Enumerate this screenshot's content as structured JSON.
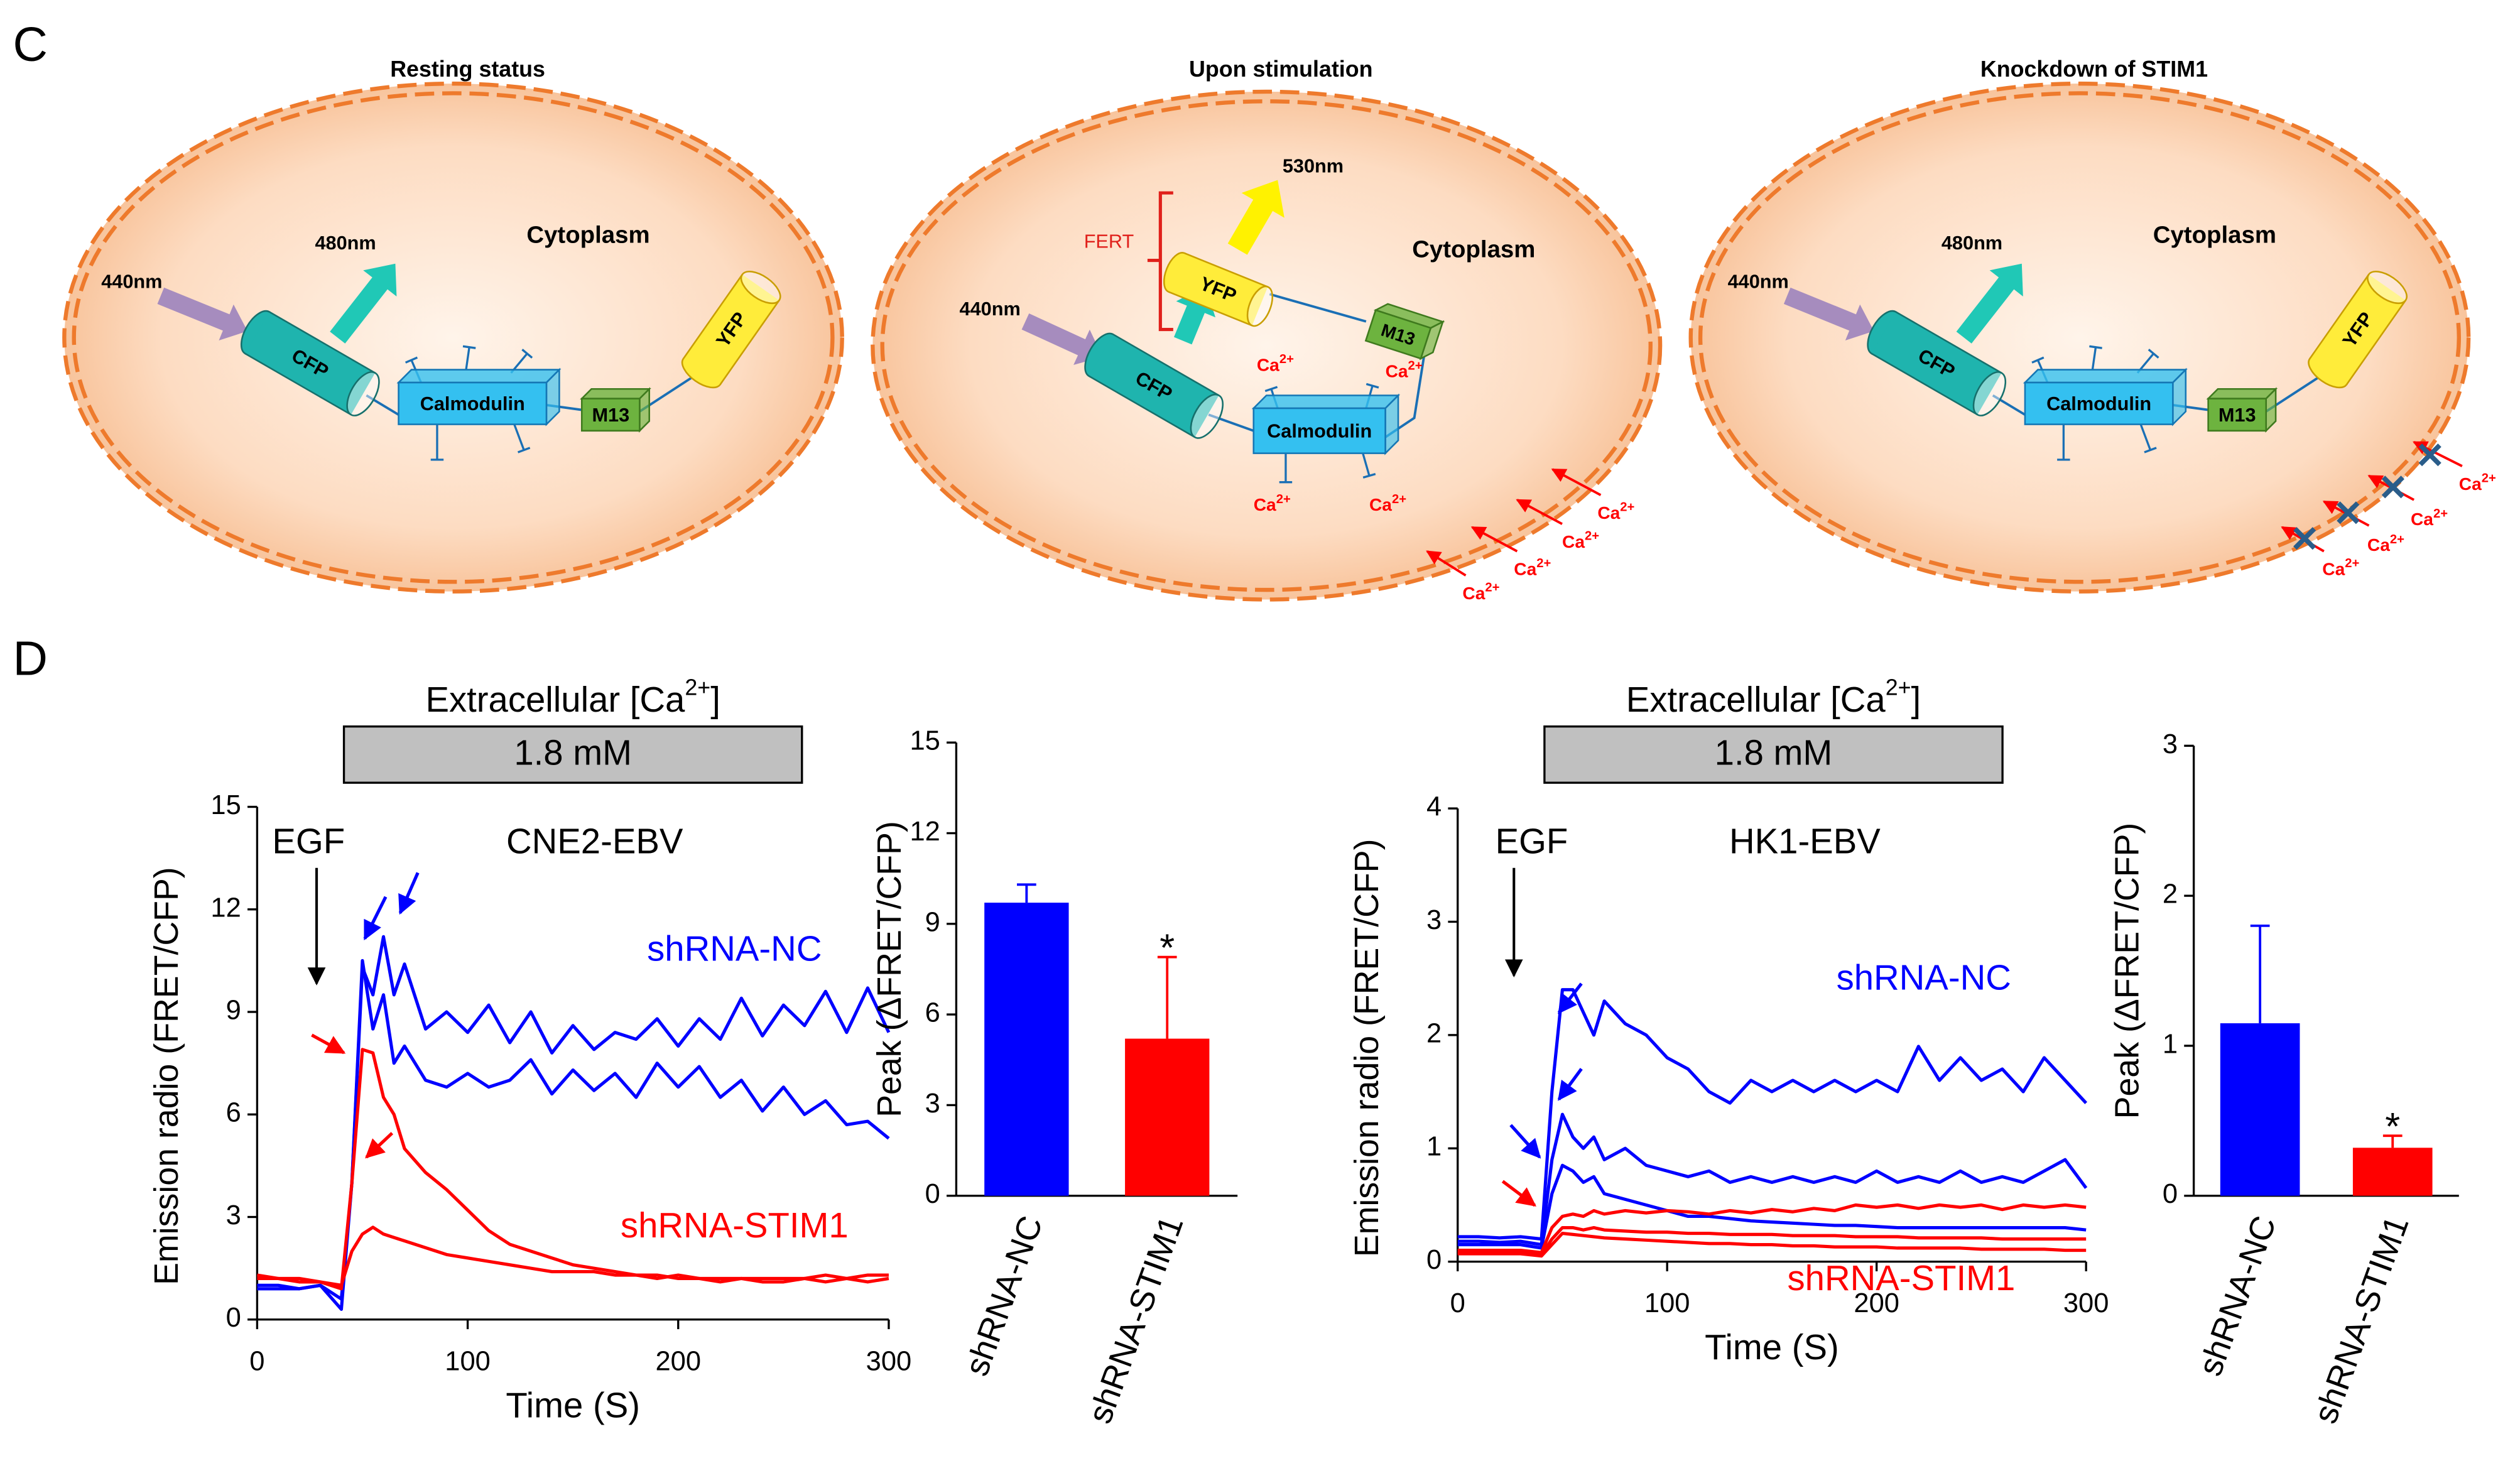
{
  "diagram": {
    "label": "C",
    "cells": [
      {
        "title": "Resting status",
        "compartment": "Cytoplasm",
        "excitation": "440nm",
        "emission": "480nm",
        "donor": "CFP",
        "sensor": "Calmodulin",
        "peptide": "M13",
        "acceptor": "YFP"
      },
      {
        "title": "Upon stimulation",
        "compartment": "Cytoplasm",
        "excitation": "440nm",
        "fret_emission": "530nm",
        "fret_label": "FERT",
        "donor": "CFP",
        "sensor": "Calmodulin",
        "peptide": "M13",
        "acceptor": "YFP",
        "ions": [
          [
            "Ca",
            "2+"
          ],
          [
            "Ca",
            "2+"
          ],
          [
            "Ca",
            "2+"
          ],
          [
            "Ca",
            "2+"
          ],
          [
            "Ca",
            "2+"
          ],
          [
            "Ca",
            "2+"
          ],
          [
            "Ca",
            "2+"
          ],
          [
            "Ca",
            "2+"
          ]
        ]
      },
      {
        "title": "Knockdown of STIM1",
        "compartment": "Cytoplasm",
        "excitation": "440nm",
        "emission": "480nm",
        "donor": "CFP",
        "sensor": "Calmodulin",
        "peptide": "M13",
        "acceptor": "YFP",
        "ions": [
          [
            "Ca",
            "2+"
          ],
          [
            "Ca",
            "2+"
          ],
          [
            "Ca",
            "2+"
          ],
          [
            "Ca",
            "2+"
          ]
        ]
      }
    ]
  },
  "panel_label": "D",
  "chart_data": [
    {
      "type": "line",
      "condition": [
        "Extracellular [Ca",
        "2+",
        "]"
      ],
      "condition_value": "1.8 mM",
      "xlabel": "Time (S)",
      "ylabel": "Emission radio (FRET/CFP)",
      "annotations": [
        {
          "text": "EGF",
          "color": "#000000"
        },
        {
          "text": "CNE2-EBV",
          "color": "#000000"
        },
        {
          "text": "shRNA-NC",
          "color": "#0000ff"
        },
        {
          "text": "shRNA-STIM1",
          "color": "#ff0000"
        }
      ],
      "xlim": [
        0,
        300
      ],
      "xticks": [
        0,
        100,
        200,
        300
      ],
      "ylim": [
        0,
        15
      ],
      "yticks": [
        0,
        3,
        6,
        9,
        12,
        15
      ],
      "x": [
        0,
        10,
        20,
        30,
        40,
        45,
        50,
        55,
        60,
        65,
        70,
        80,
        90,
        100,
        110,
        120,
        130,
        140,
        150,
        160,
        170,
        180,
        190,
        200,
        210,
        220,
        230,
        240,
        250,
        260,
        270,
        280,
        290,
        300
      ],
      "series": [
        {
          "color": "#0000ff",
          "values": [
            0.9,
            0.9,
            0.9,
            1.0,
            0.6,
            4,
            10.3,
            9.5,
            11.2,
            9.5,
            10.4,
            8.5,
            9,
            8.4,
            9.2,
            8.1,
            9,
            7.8,
            8.6,
            7.9,
            8.4,
            8.2,
            8.8,
            8.0,
            8.8,
            8.2,
            9.4,
            8.3,
            9.2,
            8.6,
            9.6,
            8.4,
            9.7,
            8.4
          ]
        },
        {
          "color": "#0000ff",
          "values": [
            1.0,
            1.0,
            0.9,
            1.0,
            0.3,
            4,
            10.5,
            8.5,
            9.5,
            7.5,
            8,
            7,
            6.8,
            7.2,
            6.8,
            7.0,
            7.6,
            6.6,
            7.3,
            6.7,
            7.2,
            6.5,
            7.5,
            6.8,
            7.4,
            6.5,
            7.0,
            6.1,
            6.8,
            6.0,
            6.4,
            5.7,
            5.8,
            5.3
          ]
        },
        {
          "color": "#ff0000",
          "values": [
            1.3,
            1.2,
            1.1,
            1.1,
            0.9,
            4,
            7.9,
            7.8,
            6.5,
            6,
            5,
            4.3,
            3.8,
            3.2,
            2.6,
            2.2,
            2.0,
            1.8,
            1.6,
            1.5,
            1.4,
            1.3,
            1.2,
            1.3,
            1.2,
            1.1,
            1.2,
            1.1,
            1.1,
            1.2,
            1.1,
            1.2,
            1.1,
            1.2
          ]
        },
        {
          "color": "#ff0000",
          "values": [
            1.2,
            1.2,
            1.2,
            1.1,
            1.0,
            2,
            2.5,
            2.7,
            2.5,
            2.4,
            2.3,
            2.1,
            1.9,
            1.8,
            1.7,
            1.6,
            1.5,
            1.4,
            1.4,
            1.4,
            1.3,
            1.3,
            1.3,
            1.2,
            1.2,
            1.2,
            1.2,
            1.2,
            1.2,
            1.2,
            1.3,
            1.2,
            1.3,
            1.3
          ]
        }
      ]
    },
    {
      "type": "bar",
      "ylabel": "Peak (ΔFRET/CFP)",
      "categories": [
        "shRNA-NC",
        "shRNA-STIM1"
      ],
      "values": [
        9.7,
        5.2
      ],
      "errors": [
        0.6,
        2.7
      ],
      "colors": [
        "#0000ff",
        "#ff0000"
      ],
      "significance": "*",
      "ylim": [
        0,
        15
      ],
      "yticks": [
        0,
        3,
        6,
        9,
        12,
        15
      ]
    },
    {
      "type": "line",
      "condition": [
        "Extracellular [Ca",
        "2+",
        "]"
      ],
      "condition_value": "1.8 mM",
      "xlabel": "Time (S)",
      "ylabel": "Emission radio (FRET/CFP)",
      "annotations": [
        {
          "text": "EGF",
          "color": "#000000"
        },
        {
          "text": "HK1-EBV",
          "color": "#000000"
        },
        {
          "text": "shRNA-NC",
          "color": "#0000ff"
        },
        {
          "text": "shRNA-STIM1",
          "color": "#ff0000"
        }
      ],
      "xlim": [
        0,
        300
      ],
      "xticks": [
        0,
        100,
        200,
        300
      ],
      "ylim": [
        0,
        4
      ],
      "yticks": [
        0,
        1,
        2,
        3,
        4
      ],
      "x": [
        0,
        10,
        20,
        30,
        40,
        45,
        50,
        55,
        60,
        65,
        70,
        80,
        90,
        100,
        110,
        120,
        130,
        140,
        150,
        160,
        170,
        180,
        190,
        200,
        210,
        220,
        230,
        240,
        250,
        260,
        270,
        280,
        290,
        300
      ],
      "series": [
        {
          "color": "#0000ff",
          "values": [
            0.22,
            0.22,
            0.21,
            0.22,
            0.2,
            1.5,
            2.4,
            2.4,
            2.2,
            2.0,
            2.3,
            2.1,
            2.0,
            1.8,
            1.7,
            1.5,
            1.4,
            1.6,
            1.5,
            1.6,
            1.5,
            1.6,
            1.5,
            1.6,
            1.5,
            1.9,
            1.6,
            1.8,
            1.6,
            1.7,
            1.5,
            1.8,
            1.6,
            1.4
          ]
        },
        {
          "color": "#0000ff",
          "values": [
            0.18,
            0.18,
            0.17,
            0.18,
            0.15,
            0.9,
            1.3,
            1.1,
            1.0,
            1.1,
            0.9,
            1.0,
            0.85,
            0.8,
            0.75,
            0.8,
            0.7,
            0.75,
            0.7,
            0.75,
            0.7,
            0.75,
            0.7,
            0.8,
            0.7,
            0.75,
            0.7,
            0.8,
            0.7,
            0.75,
            0.7,
            0.8,
            0.9,
            0.65
          ]
        },
        {
          "color": "#0000ff",
          "values": [
            0.15,
            0.15,
            0.15,
            0.15,
            0.12,
            0.6,
            0.85,
            0.8,
            0.7,
            0.75,
            0.6,
            0.55,
            0.5,
            0.45,
            0.4,
            0.4,
            0.38,
            0.36,
            0.35,
            0.34,
            0.33,
            0.32,
            0.32,
            0.31,
            0.3,
            0.3,
            0.3,
            0.3,
            0.3,
            0.3,
            0.3,
            0.3,
            0.3,
            0.28
          ]
        },
        {
          "color": "#ff0000",
          "values": [
            0.1,
            0.1,
            0.1,
            0.1,
            0.08,
            0.3,
            0.4,
            0.42,
            0.4,
            0.45,
            0.42,
            0.45,
            0.43,
            0.45,
            0.44,
            0.42,
            0.45,
            0.43,
            0.46,
            0.44,
            0.47,
            0.45,
            0.5,
            0.48,
            0.5,
            0.47,
            0.5,
            0.48,
            0.5,
            0.46,
            0.5,
            0.48,
            0.5,
            0.48
          ]
        },
        {
          "color": "#ff0000",
          "values": [
            0.08,
            0.08,
            0.08,
            0.08,
            0.06,
            0.2,
            0.3,
            0.3,
            0.28,
            0.3,
            0.28,
            0.27,
            0.26,
            0.26,
            0.25,
            0.25,
            0.24,
            0.24,
            0.24,
            0.23,
            0.23,
            0.23,
            0.22,
            0.22,
            0.22,
            0.21,
            0.21,
            0.21,
            0.21,
            0.2,
            0.2,
            0.2,
            0.2,
            0.2
          ]
        },
        {
          "color": "#ff0000",
          "values": [
            0.07,
            0.07,
            0.07,
            0.07,
            0.05,
            0.15,
            0.25,
            0.24,
            0.23,
            0.22,
            0.21,
            0.2,
            0.19,
            0.18,
            0.17,
            0.16,
            0.16,
            0.15,
            0.15,
            0.14,
            0.14,
            0.13,
            0.13,
            0.13,
            0.12,
            0.12,
            0.12,
            0.12,
            0.11,
            0.11,
            0.11,
            0.11,
            0.1,
            0.1
          ]
        }
      ]
    },
    {
      "type": "bar",
      "ylabel": "Peak (ΔFRET/CFP)",
      "categories": [
        "shRNA-NC",
        "shRNA-STIM1"
      ],
      "values": [
        1.15,
        0.32
      ],
      "errors": [
        0.65,
        0.08
      ],
      "colors": [
        "#0000ff",
        "#ff0000"
      ],
      "significance": "*",
      "ylim": [
        0,
        3
      ],
      "yticks": [
        0,
        1,
        2,
        3
      ]
    }
  ]
}
